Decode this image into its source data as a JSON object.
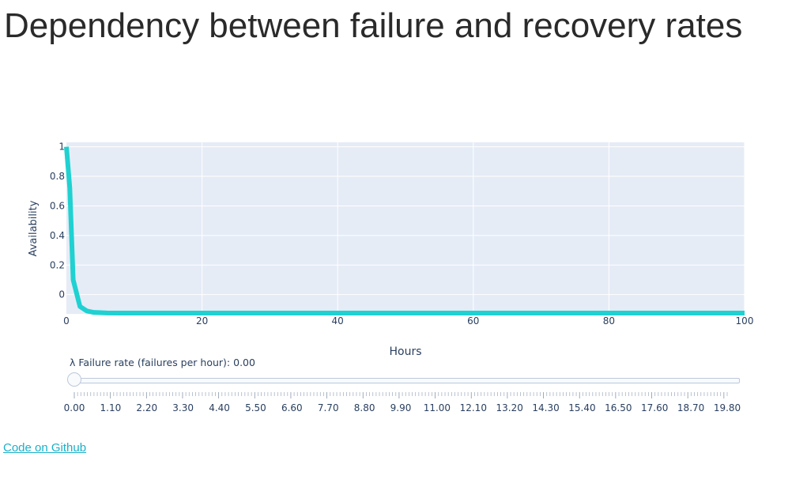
{
  "page": {
    "title": "Dependency between failure and recovery rates",
    "github_link": "Code on Github"
  },
  "slider": {
    "label": "λ Failure rate (failures per hour): 0.00",
    "current_value": 0.0,
    "min": 0.0,
    "max": 19.8,
    "tick_labels": [
      "0.00",
      "1.10",
      "2.20",
      "3.30",
      "4.40",
      "5.50",
      "6.60",
      "7.70",
      "8.80",
      "9.90",
      "11.00",
      "12.10",
      "13.20",
      "14.30",
      "15.40",
      "16.50",
      "17.60",
      "18.70",
      "19.80"
    ]
  },
  "colors": {
    "line": "#1fd1d1",
    "plot_bg": "#e5ecf6",
    "grid": "#ffffff",
    "axis_text": "#2a3f5f"
  },
  "chart_data": {
    "type": "line",
    "title": "",
    "xlabel": "Hours",
    "ylabel": "Availability",
    "xlim": [
      0,
      100
    ],
    "ylim": [
      -0.13,
      1.03
    ],
    "xticks": [
      0,
      20,
      40,
      60,
      80,
      100
    ],
    "xtick_labels": [
      "0",
      "20",
      "40",
      "60",
      "80",
      "100"
    ],
    "yticks": [
      0,
      0.2,
      0.4,
      0.6,
      0.8,
      1
    ],
    "ytick_labels": [
      "0",
      "0.2",
      "0.4",
      "0.6",
      "0.8",
      "1"
    ],
    "grid": true,
    "series": [
      {
        "name": "Availability",
        "x": [
          0,
          0.5,
          1,
          2,
          3,
          4,
          6,
          8,
          10,
          20,
          40,
          60,
          80,
          100
        ],
        "y": [
          1.0,
          0.72,
          0.1,
          -0.08,
          -0.11,
          -0.12,
          -0.124,
          -0.125,
          -0.125,
          -0.125,
          -0.125,
          -0.125,
          -0.125,
          -0.125
        ]
      }
    ]
  }
}
